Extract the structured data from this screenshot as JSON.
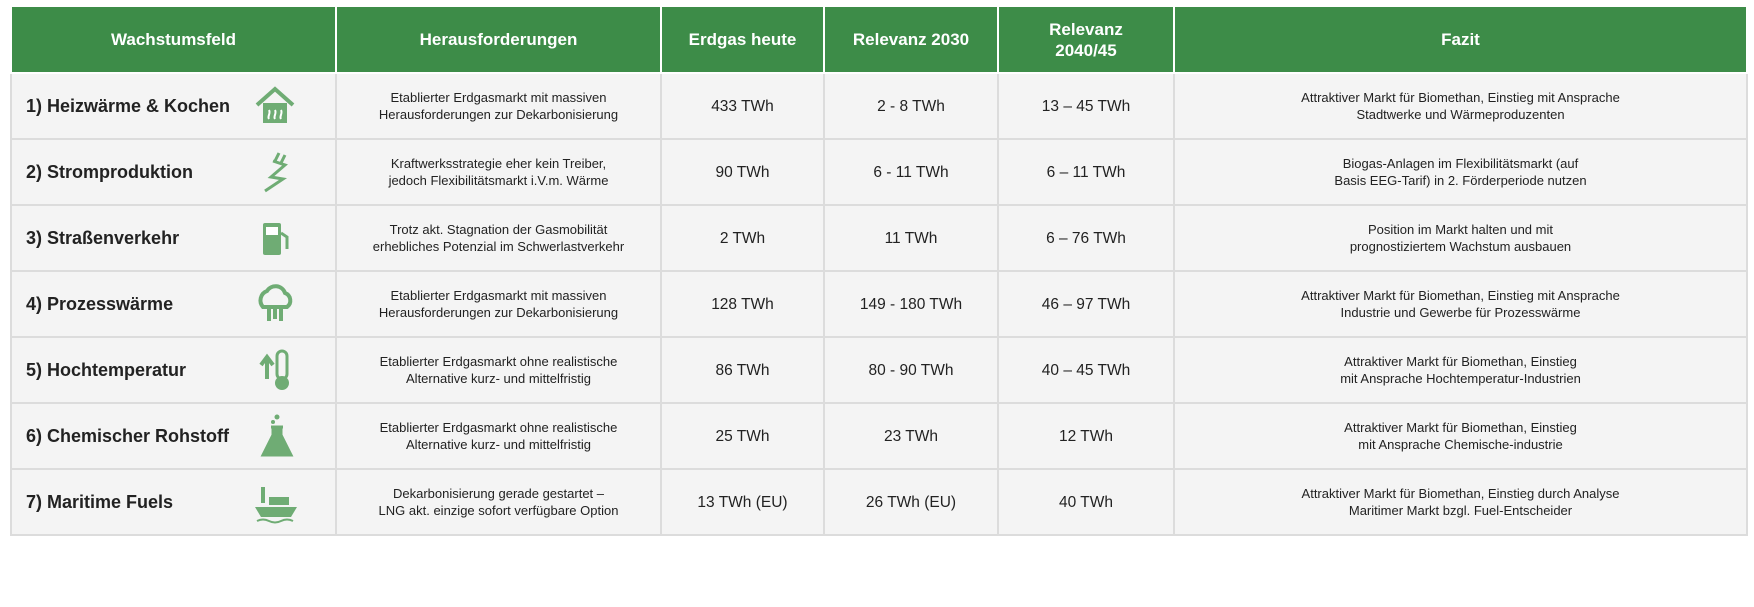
{
  "table": {
    "header": [
      "Wachstumsfeld",
      "Herausforderungen",
      "Erdgas heute",
      "Relevanz 2030",
      "Relevanz\n2040/45",
      "Fazit"
    ],
    "rows": [
      [
        "1) Heizwärme & Kochen",
        "Etablierter Erdgasmarkt mit massiven\nHerausforderungen zur Dekarbonisierung",
        "433 TWh",
        "2 - 8 TWh",
        "13 – 45 TWh",
        "Attraktiver Markt für Biomethan, Einstieg mit Ansprache\nStadtwerke und Wärmeproduzenten"
      ],
      [
        "2) Stromproduktion",
        "Kraftwerksstrategie eher kein Treiber,\njedoch Flexibilitätsmarkt i.V.m. Wärme",
        "90 TWh",
        "6 - 11 TWh",
        "6 – 11 TWh",
        "Biogas-Anlagen im Flexibilitätsmarkt (auf\nBasis EEG-Tarif) in 2. Förderperiode nutzen"
      ],
      [
        "3) Straßenverkehr",
        "Trotz akt. Stagnation der Gasmobilität\nerhebliches Potenzial im Schwerlastverkehr",
        "2 TWh",
        "11 TWh",
        "6 – 76 TWh",
        "Position im Markt halten und mit\nprognostiziertem Wachstum ausbauen"
      ],
      [
        "4) Prozesswärme",
        "Etablierter Erdgasmarkt mit massiven\nHerausforderungen zur Dekarbonisierung",
        "128 TWh",
        "149 - 180 TWh",
        "46 – 97 TWh",
        "Attraktiver Markt für Biomethan, Einstieg mit Ansprache\nIndustrie und Gewerbe für Prozesswärme"
      ],
      [
        "5) Hochtemperatur",
        "Etablierter Erdgasmarkt ohne realistische\nAlternative kurz- und mittelfristig",
        "86 TWh",
        "80 - 90 TWh",
        "40 – 45 TWh",
        "Attraktiver Markt für Biomethan, Einstieg\nmit Ansprache Hochtemperatur-Industrien"
      ],
      [
        "6) Chemischer Rohstoff",
        "Etablierter Erdgasmarkt ohne realistische\nAlternative kurz- und mittelfristig",
        "25 TWh",
        "23 TWh",
        "12 TWh",
        "Attraktiver Markt für Biomethan, Einstieg\nmit Ansprache Chemische-industrie"
      ],
      [
        "7) Maritime Fuels",
        "Dekarbonisierung gerade gestartet –\nLNG akt. einzige sofort verfügbare Option",
        "13 TWh (EU)",
        "26 TWh (EU)",
        "40 TWh",
        "Attraktiver Markt für Biomethan, Einstieg durch Analyse\nMaritimer Markt bzgl. Fuel-Entscheider"
      ]
    ]
  }
}
